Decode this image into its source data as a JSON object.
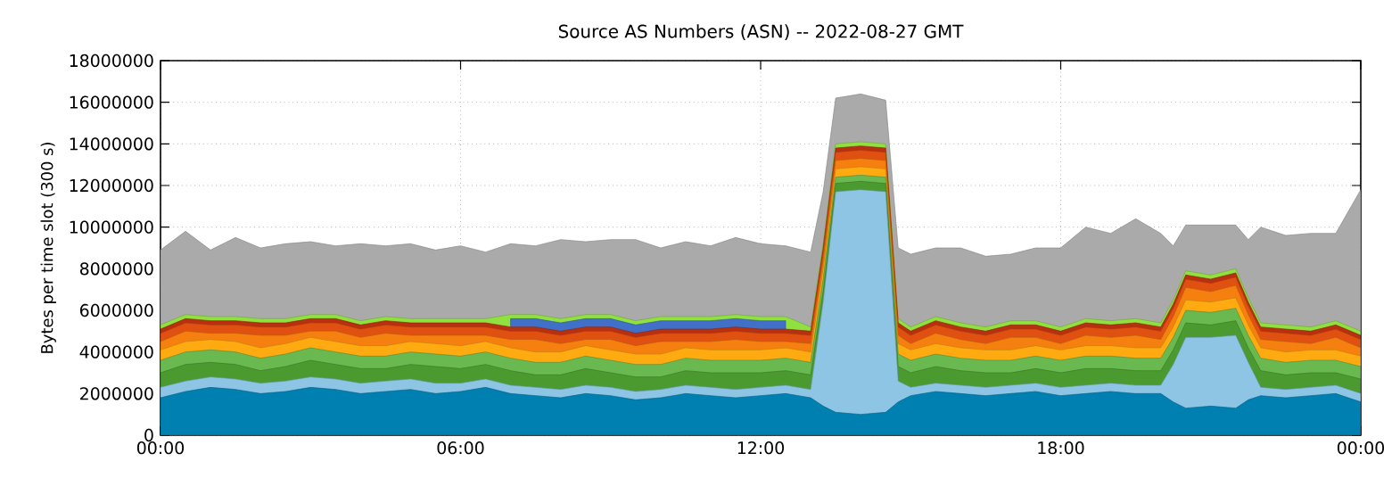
{
  "chart_data": {
    "type": "area",
    "stacked": true,
    "grid": true,
    "title": "Source AS Numbers (ASN) -- 2022-08-27 GMT",
    "ylabel": "Bytes per time slot (300 s)",
    "xlim": [
      0,
      24
    ],
    "ylim": [
      0,
      18000000
    ],
    "xticks": [
      {
        "value": 0,
        "label": "00:00"
      },
      {
        "value": 6,
        "label": "06:00"
      },
      {
        "value": 12,
        "label": "12:00"
      },
      {
        "value": 18,
        "label": "18:00"
      },
      {
        "value": 24,
        "label": "00:00"
      }
    ],
    "yticks": [
      0,
      2000000,
      4000000,
      6000000,
      8000000,
      10000000,
      12000000,
      14000000,
      16000000,
      18000000
    ],
    "x": [
      0,
      0.5,
      1,
      1.5,
      2,
      2.5,
      3,
      3.5,
      4,
      4.5,
      5,
      5.5,
      6,
      6.5,
      7,
      7.5,
      8,
      8.5,
      9,
      9.5,
      10,
      10.5,
      11,
      11.5,
      12,
      12.5,
      13,
      13.25,
      13.5,
      14,
      14.5,
      14.75,
      15,
      15.5,
      16,
      16.5,
      17,
      17.5,
      18,
      18.5,
      19,
      19.5,
      20,
      20.25,
      20.5,
      21,
      21.5,
      21.75,
      22,
      22.5,
      23,
      23.5,
      24
    ],
    "series": [
      {
        "color": "#0080b0",
        "values": [
          1800000,
          2100000,
          2300000,
          2200000,
          2000000,
          2100000,
          2300000,
          2200000,
          2000000,
          2100000,
          2200000,
          2000000,
          2100000,
          2300000,
          2000000,
          1900000,
          1800000,
          2000000,
          1900000,
          1700000,
          1800000,
          2000000,
          1900000,
          1800000,
          1900000,
          2000000,
          1800000,
          1400000,
          1100000,
          1000000,
          1100000,
          1600000,
          1900000,
          2100000,
          2000000,
          1900000,
          2000000,
          2100000,
          1900000,
          2000000,
          2100000,
          2000000,
          2000000,
          1600000,
          1300000,
          1400000,
          1300000,
          1700000,
          1900000,
          1800000,
          1900000,
          2000000,
          1600000
        ]
      },
      {
        "color": "#8ec5e4",
        "values": [
          500000,
          500000,
          500000,
          500000,
          500000,
          500000,
          500000,
          500000,
          500000,
          500000,
          500000,
          500000,
          400000,
          400000,
          400000,
          400000,
          400000,
          400000,
          400000,
          400000,
          400000,
          400000,
          400000,
          400000,
          400000,
          400000,
          400000,
          5000000,
          10600000,
          10800000,
          10600000,
          1000000,
          400000,
          400000,
          400000,
          400000,
          400000,
          400000,
          400000,
          400000,
          400000,
          400000,
          400000,
          1800000,
          3400000,
          3300000,
          3500000,
          1800000,
          400000,
          400000,
          400000,
          400000,
          400000
        ]
      },
      {
        "color": "#4a9a30",
        "values": [
          700000,
          800000,
          700000,
          700000,
          600000,
          700000,
          800000,
          700000,
          700000,
          600000,
          700000,
          800000,
          700000,
          700000,
          700000,
          600000,
          700000,
          800000,
          700000,
          700000,
          600000,
          700000,
          700000,
          800000,
          700000,
          700000,
          700000,
          500000,
          400000,
          400000,
          400000,
          700000,
          700000,
          800000,
          700000,
          700000,
          600000,
          700000,
          700000,
          800000,
          700000,
          700000,
          700000,
          700000,
          700000,
          600000,
          700000,
          700000,
          800000,
          700000,
          700000,
          600000,
          700000
        ]
      },
      {
        "color": "#6ab850",
        "values": [
          600000,
          600000,
          600000,
          600000,
          600000,
          600000,
          600000,
          600000,
          600000,
          600000,
          600000,
          600000,
          600000,
          600000,
          600000,
          600000,
          600000,
          600000,
          600000,
          600000,
          600000,
          600000,
          600000,
          600000,
          600000,
          600000,
          600000,
          600000,
          300000,
          300000,
          300000,
          600000,
          600000,
          600000,
          600000,
          600000,
          600000,
          600000,
          600000,
          600000,
          600000,
          600000,
          600000,
          600000,
          600000,
          600000,
          600000,
          600000,
          600000,
          600000,
          600000,
          600000,
          600000
        ]
      },
      {
        "color": "#ffaa10",
        "values": [
          500000,
          500000,
          500000,
          500000,
          500000,
          500000,
          500000,
          500000,
          500000,
          500000,
          500000,
          500000,
          500000,
          500000,
          500000,
          500000,
          500000,
          500000,
          500000,
          500000,
          500000,
          500000,
          500000,
          500000,
          500000,
          500000,
          500000,
          500000,
          400000,
          400000,
          400000,
          500000,
          500000,
          500000,
          500000,
          500000,
          500000,
          500000,
          500000,
          500000,
          500000,
          500000,
          500000,
          500000,
          500000,
          500000,
          500000,
          500000,
          500000,
          500000,
          500000,
          500000,
          500000
        ]
      },
      {
        "color": "#f58010",
        "values": [
          400000,
          500000,
          300000,
          400000,
          600000,
          400000,
          300000,
          500000,
          400000,
          600000,
          300000,
          400000,
          500000,
          300000,
          400000,
          600000,
          400000,
          300000,
          500000,
          400000,
          600000,
          300000,
          400000,
          500000,
          400000,
          300000,
          400000,
          400000,
          400000,
          400000,
          400000,
          400000,
          300000,
          500000,
          400000,
          300000,
          600000,
          400000,
          300000,
          500000,
          400000,
          600000,
          400000,
          500000,
          600000,
          500000,
          600000,
          500000,
          400000,
          500000,
          300000,
          600000,
          400000
        ]
      },
      {
        "color": "#e05010",
        "values": [
          400000,
          400000,
          400000,
          400000,
          400000,
          400000,
          400000,
          400000,
          400000,
          400000,
          400000,
          400000,
          400000,
          400000,
          400000,
          400000,
          400000,
          400000,
          400000,
          400000,
          400000,
          400000,
          400000,
          400000,
          400000,
          400000,
          400000,
          400000,
          400000,
          400000,
          400000,
          400000,
          400000,
          400000,
          400000,
          400000,
          400000,
          400000,
          400000,
          400000,
          400000,
          400000,
          400000,
          400000,
          400000,
          400000,
          400000,
          400000,
          400000,
          400000,
          400000,
          400000,
          400000
        ]
      },
      {
        "color": "#b83010",
        "values": [
          200000,
          200000,
          200000,
          200000,
          200000,
          200000,
          200000,
          200000,
          200000,
          200000,
          200000,
          200000,
          200000,
          200000,
          200000,
          200000,
          200000,
          200000,
          200000,
          200000,
          200000,
          200000,
          200000,
          200000,
          200000,
          200000,
          200000,
          200000,
          200000,
          200000,
          200000,
          200000,
          200000,
          200000,
          200000,
          200000,
          200000,
          200000,
          200000,
          200000,
          200000,
          200000,
          200000,
          200000,
          200000,
          200000,
          200000,
          200000,
          200000,
          200000,
          200000,
          200000,
          200000
        ]
      },
      {
        "color": "#4070c8",
        "values": [
          null,
          null,
          null,
          null,
          null,
          null,
          null,
          null,
          null,
          null,
          null,
          null,
          null,
          null,
          400000,
          400000,
          400000,
          400000,
          400000,
          400000,
          400000,
          400000,
          400000,
          400000,
          400000,
          400000,
          null,
          null,
          null,
          null,
          null,
          null,
          null,
          null,
          null,
          null,
          null,
          null,
          null,
          null,
          null,
          null,
          null,
          null,
          null,
          null,
          null,
          null,
          null,
          null,
          null,
          null,
          null
        ]
      },
      {
        "color": "#90e040",
        "values": [
          200000,
          200000,
          200000,
          200000,
          200000,
          200000,
          200000,
          200000,
          200000,
          200000,
          200000,
          200000,
          200000,
          200000,
          200000,
          200000,
          200000,
          200000,
          200000,
          200000,
          200000,
          200000,
          200000,
          200000,
          200000,
          200000,
          200000,
          200000,
          200000,
          200000,
          200000,
          200000,
          200000,
          200000,
          200000,
          200000,
          200000,
          200000,
          200000,
          200000,
          200000,
          200000,
          200000,
          200000,
          200000,
          200000,
          200000,
          200000,
          200000,
          200000,
          200000,
          200000,
          200000
        ]
      },
      {
        "color": "#aaaaaa",
        "values": [
          3600000,
          4000000,
          3200000,
          3800000,
          3400000,
          3600000,
          3500000,
          3300000,
          3700000,
          3400000,
          3600000,
          3300000,
          3500000,
          3200000,
          3400000,
          3300000,
          3800000,
          3500000,
          3600000,
          3900000,
          3300000,
          3600000,
          3400000,
          3700000,
          3500000,
          3400000,
          3600000,
          2500000,
          2200000,
          2300000,
          2100000,
          3400000,
          3500000,
          3300000,
          3600000,
          3400000,
          3200000,
          3500000,
          3800000,
          4400000,
          4200000,
          4800000,
          4300000,
          2600000,
          2200000,
          2400000,
          2100000,
          2800000,
          4600000,
          4300000,
          4500000,
          4200000,
          6800000
        ]
      }
    ]
  }
}
